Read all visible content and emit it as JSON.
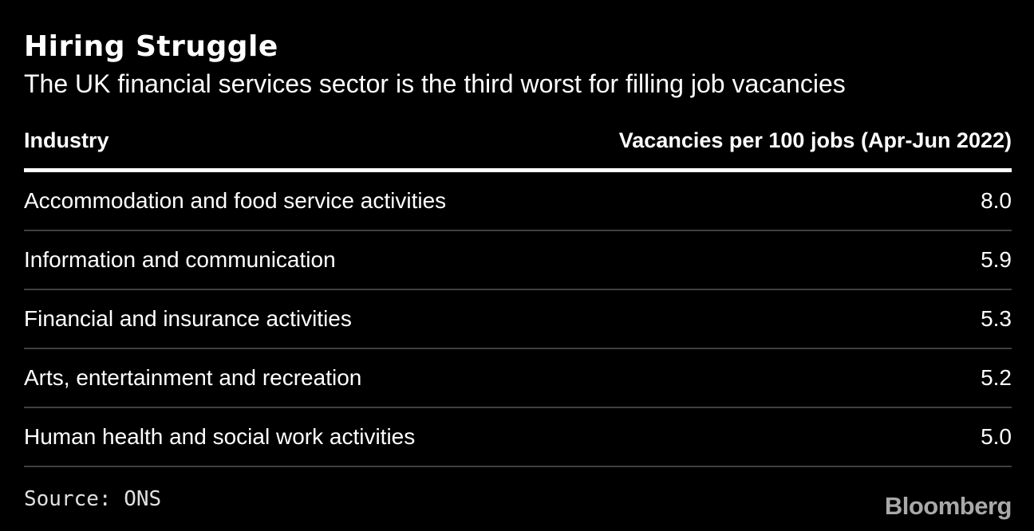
{
  "title": "Hiring Struggle",
  "subtitle": "The UK financial services sector is the third worst for filling job vacancies",
  "table": {
    "col_industry": "Industry",
    "col_value": "Vacancies per 100 jobs (Apr-Jun 2022)",
    "rows": [
      {
        "label": "Accommodation and food service activities",
        "value": "8.0"
      },
      {
        "label": "Information and communication",
        "value": "5.9"
      },
      {
        "label": "Financial and insurance activities",
        "value": "5.3"
      },
      {
        "label": "Arts, entertainment and recreation",
        "value": "5.2"
      },
      {
        "label": "Human health and social work activities",
        "value": "5.0"
      }
    ]
  },
  "footer": {
    "source": "Source: ONS",
    "brand": "Bloomberg"
  },
  "colors": {
    "background": "#000000",
    "text": "#ffffff",
    "header_rule": "#ffffff",
    "row_separator": "#404040",
    "source_text": "#e0e0e0",
    "brand_text": "#a9a9a9"
  },
  "chart_data": {
    "type": "table",
    "title": "Hiring Struggle",
    "subtitle": "The UK financial services sector is the third worst for filling job vacancies",
    "columns": [
      "Industry",
      "Vacancies per 100 jobs (Apr-Jun 2022)"
    ],
    "categories": [
      "Accommodation and food service activities",
      "Information and communication",
      "Financial and insurance activities",
      "Arts, entertainment and recreation",
      "Human health and social work activities"
    ],
    "values": [
      8.0,
      5.9,
      5.3,
      5.2,
      5.0
    ],
    "value_precision": 1,
    "source": "Source: ONS",
    "brand": "Bloomberg",
    "layout": {
      "background": "black",
      "value_alignment": "right",
      "grid": "horizontal-separators"
    }
  }
}
